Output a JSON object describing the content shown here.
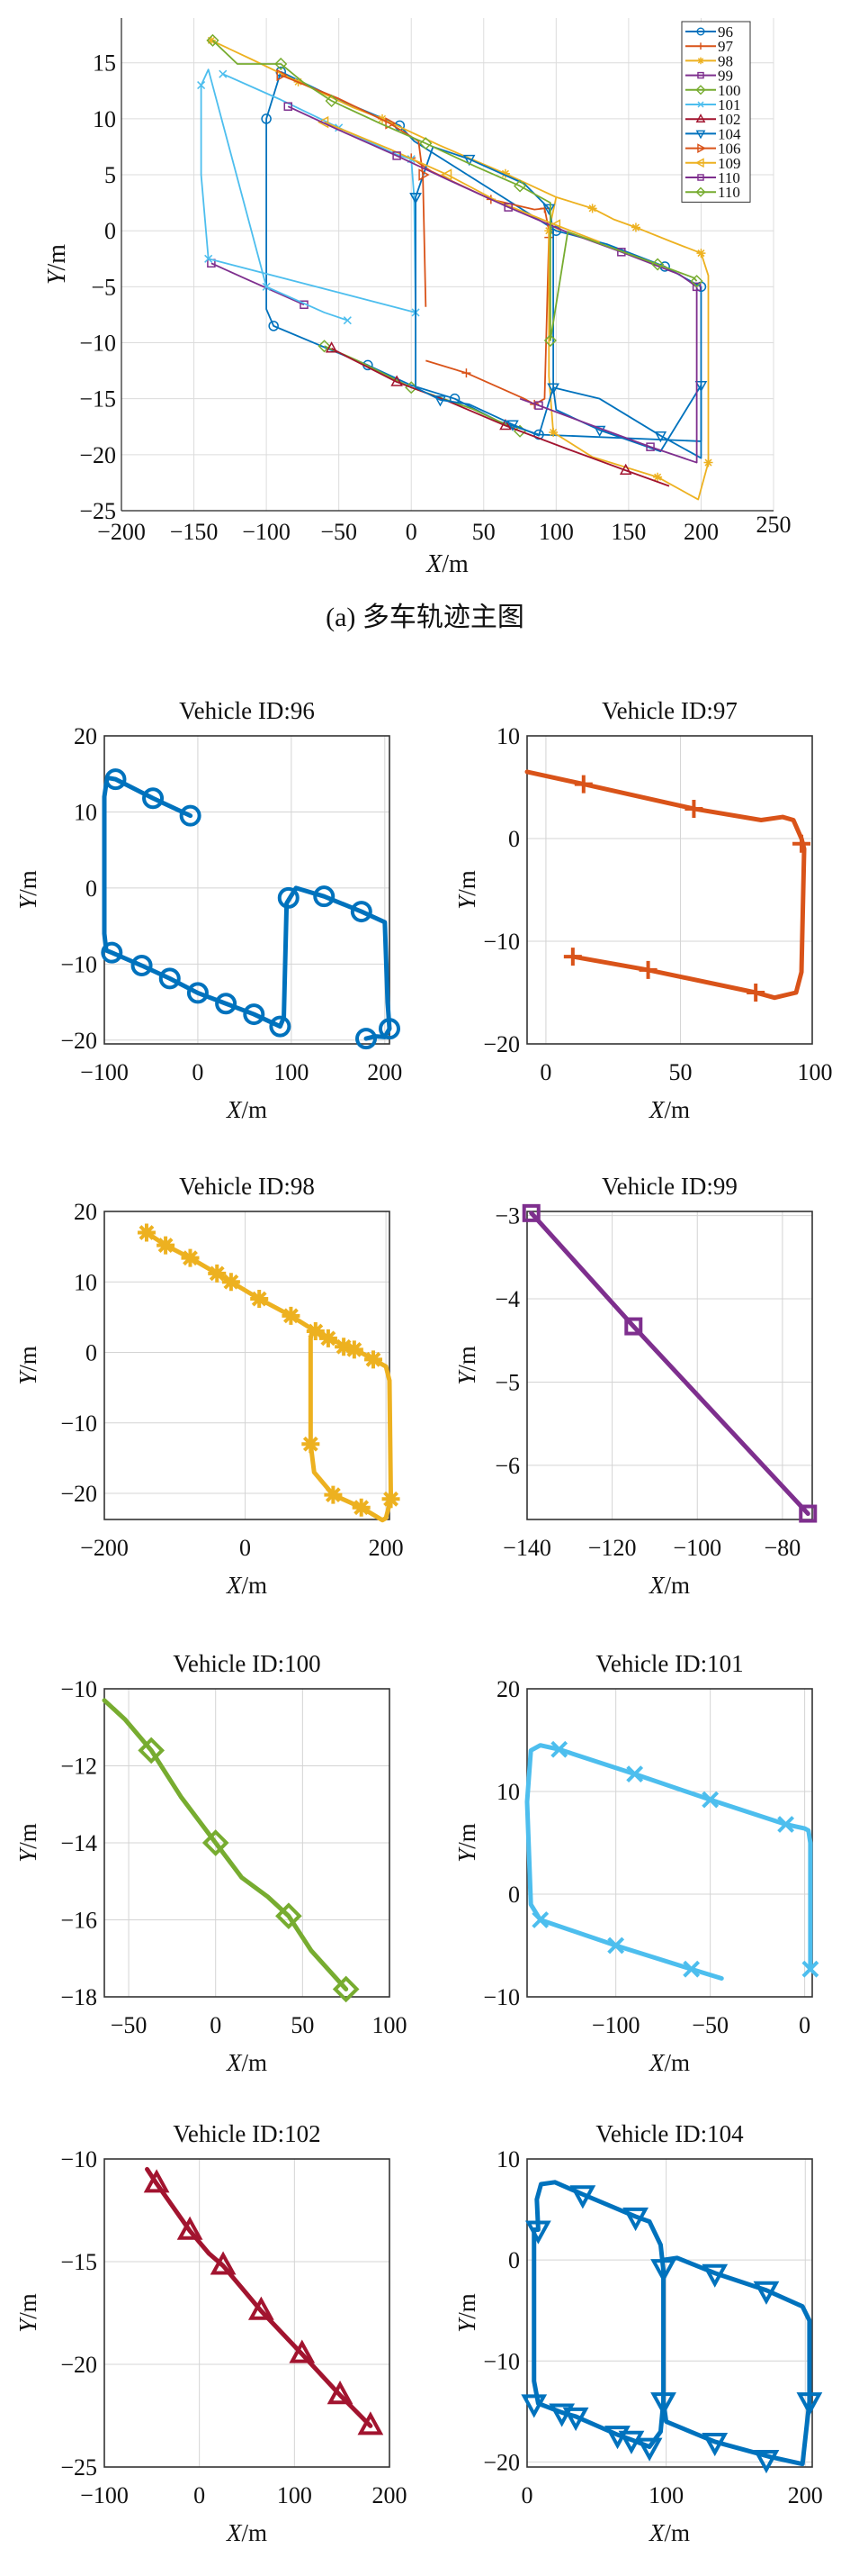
{
  "caption": "(a) 多车轨迹主图",
  "chart_data": [
    {
      "type": "line",
      "title": "",
      "xlabel": "X/m",
      "ylabel": "Y/m",
      "xlim": [
        -200,
        250
      ],
      "ylim": [
        -25,
        19
      ],
      "xticks": [
        -200,
        -150,
        -100,
        -50,
        0,
        50,
        100,
        150,
        200,
        250
      ],
      "yticks": [
        -25,
        -20,
        -15,
        -10,
        -5,
        0,
        5,
        10,
        15
      ],
      "grid": true,
      "legend_position": "top-right",
      "series": [
        {
          "name": "96",
          "color": "#0072BD",
          "marker": "circle",
          "x": [
            -90,
            -50,
            -8,
            2,
            100,
            135,
            175,
            190,
            200,
            200,
            88,
            60,
            30,
            0,
            -30,
            -60,
            -95,
            -100,
            -100,
            -90
          ],
          "y": [
            14.2,
            11.7,
            9.4,
            8,
            0,
            -1.2,
            -3.2,
            -4.3,
            -5,
            -18.8,
            -18.2,
            -17,
            -15,
            -13.8,
            -12,
            -10.4,
            -8.5,
            -7,
            10,
            14.2
          ]
        },
        {
          "name": "97",
          "color": "#D95319",
          "marker": "plus",
          "x": [
            0,
            14,
            55,
            85,
            92,
            95,
            95,
            92,
            85,
            78,
            38,
            10
          ],
          "y": [
            6.5,
            5.3,
            2.8,
            1.9,
            2,
            0,
            -0.6,
            -15,
            -15.5,
            -15,
            -12.7,
            -11.6
          ]
        },
        {
          "name": "98",
          "color": "#EDB120",
          "marker": "star",
          "x": [
            -138,
            -110,
            -78,
            -40,
            -20,
            20,
            65,
            100,
            125,
            140,
            155,
            180,
            200,
            205,
            205,
            198,
            170,
            125,
            98,
            95,
            95,
            100
          ],
          "y": [
            17,
            15.3,
            13.3,
            11,
            10,
            7.6,
            5.1,
            3,
            2,
            1,
            0.3,
            -1,
            -2,
            -4,
            -20.7,
            -24,
            -22,
            -20.2,
            -18,
            -13,
            0,
            3
          ]
        },
        {
          "name": "99",
          "color": "#7E2F8E",
          "marker": "square",
          "x": [
            -138,
            -114,
            -74
          ],
          "y": [
            -2.9,
            -4.3,
            -6.6
          ]
        },
        {
          "name": "100",
          "color": "#77AC30",
          "marker": "diamond",
          "x": [
            -60,
            -37,
            0,
            42,
            75
          ],
          "y": [
            -10.3,
            -11.6,
            -14,
            -15.9,
            -17.9
          ]
        },
        {
          "name": "101",
          "color": "#4DBEEE",
          "marker": "x",
          "x": [
            -130,
            -90,
            -50,
            -10,
            0,
            2,
            3,
            3,
            -140,
            -145,
            -145,
            -140,
            -100,
            -60,
            -44
          ],
          "y": [
            14,
            11.7,
            9.2,
            6.8,
            6.4,
            3,
            -7.3,
            -7.3,
            -2.5,
            5,
            13,
            14.4,
            -5,
            -7.3,
            -8
          ]
        },
        {
          "name": "102",
          "color": "#A2142F",
          "marker": "triangle-up",
          "x": [
            -55,
            -45,
            -10,
            25,
            65,
            108,
            148,
            178
          ],
          "y": [
            -10.5,
            -11.2,
            -13.5,
            -15.2,
            -17.4,
            -19.5,
            -21.4,
            -22.8
          ]
        },
        {
          "name": "104",
          "color": "#0072BD",
          "marker": "triangle-down",
          "x": [
            3,
            15,
            40,
            78,
            95,
            98,
            98,
            130,
            172,
            200,
            200,
            172,
            130,
            100,
            98,
            88,
            70,
            40,
            20,
            3,
            3
          ],
          "y": [
            3,
            7.5,
            6.4,
            4.2,
            2,
            0,
            -14,
            -15,
            -18.3,
            -20.3,
            -13.8,
            -19.7,
            -17.8,
            -16,
            -14,
            -18.3,
            -17.3,
            -15.5,
            -15.1,
            -14,
            3
          ]
        },
        {
          "name": "106",
          "color": "#D95319",
          "marker": "triangle-right",
          "x": [
            -90,
            -50,
            -15,
            5,
            8,
            10
          ],
          "y": [
            13.9,
            11.8,
            9.6,
            8,
            5,
            -6.8
          ]
        },
        {
          "name": "109",
          "color": "#EDB120",
          "marker": "triangle-left",
          "x": [
            -60,
            -15,
            25,
            60,
            100,
            130
          ],
          "y": [
            9.7,
            7.3,
            5,
            2.6,
            0.5,
            -1
          ]
        },
        {
          "name": "110",
          "color": "#7E2F8E",
          "marker": "square",
          "x": [
            -85,
            -50,
            -10,
            28,
            67,
            107,
            145,
            185,
            197,
            197,
            165,
            125,
            88,
            75
          ],
          "y": [
            11.1,
            9,
            6.7,
            4.4,
            2.1,
            -0.1,
            -1.9,
            -3.9,
            -5,
            -20.7,
            -19.3,
            -17.4,
            -15.6,
            -15
          ]
        },
        {
          "name": "110",
          "color": "#77AC30",
          "marker": "diamond",
          "x": [
            -137,
            -120,
            -90,
            -75,
            -55,
            -20,
            10,
            45,
            75,
            96,
            96,
            108,
            170,
            195,
            197
          ],
          "y": [
            17,
            14.9,
            14.9,
            13.3,
            11.6,
            9.5,
            7.8,
            5.7,
            4,
            2.5,
            -9.8,
            -0.1,
            -3,
            -4.2,
            -4.5
          ]
        }
      ]
    },
    {
      "type": "line",
      "title": "Vehicle ID:96",
      "xlabel": "X/m",
      "ylabel": "Y/m",
      "color": "#0072BD",
      "marker": "circle",
      "xlim": [
        -100,
        205
      ],
      "ylim": [
        -20.5,
        20
      ],
      "xticks": [
        -100,
        0,
        100,
        200
      ],
      "yticks": [
        -20,
        -10,
        0,
        10,
        20
      ],
      "x": [
        -8,
        -48,
        -88,
        -97,
        -100,
        -100,
        -98,
        -92,
        -60,
        -30,
        0,
        30,
        60,
        88,
        92,
        95,
        100,
        105,
        135,
        175,
        200,
        203,
        205,
        200,
        190,
        180
      ],
      "y": [
        9.5,
        11.8,
        14.3,
        14.5,
        12,
        -6,
        -8.2,
        -8.5,
        -10.2,
        -11.9,
        -13.8,
        -15.2,
        -16.6,
        -18.2,
        -17,
        -2,
        -1,
        0,
        -1.1,
        -3.1,
        -4.5,
        -15,
        -18.5,
        -19.6,
        -19.5,
        -19.8
      ],
      "markers_x": [
        -88,
        -48,
        -8,
        -92,
        -60,
        -30,
        0,
        30,
        60,
        88,
        97,
        135,
        175,
        180,
        205
      ],
      "markers_y": [
        14.3,
        11.8,
        9.5,
        -8.5,
        -10.2,
        -11.9,
        -13.8,
        -15.2,
        -16.6,
        -18.2,
        -1.3,
        -1.1,
        -3.1,
        -19.8,
        -18.5
      ]
    },
    {
      "type": "line",
      "title": "Vehicle ID:97",
      "xlabel": "X/m",
      "ylabel": "Y/m",
      "color": "#D95319",
      "marker": "plus",
      "xlim": [
        -7,
        99
      ],
      "ylim": [
        -20,
        10
      ],
      "xticks": [
        0,
        50,
        100
      ],
      "yticks": [
        -20,
        -10,
        0,
        10
      ],
      "x": [
        -7,
        14,
        55,
        80,
        88,
        92,
        95,
        96,
        95,
        93,
        85,
        78,
        38,
        10
      ],
      "y": [
        6.5,
        5.3,
        2.9,
        1.8,
        2.1,
        1.8,
        0,
        -1,
        -13,
        -15,
        -15.5,
        -15,
        -12.8,
        -11.5
      ],
      "markers_x": [
        14,
        55,
        95,
        78,
        38,
        10
      ],
      "markers_y": [
        5.3,
        2.9,
        -0.5,
        -15,
        -12.8,
        -11.5
      ]
    },
    {
      "type": "line",
      "title": "Vehicle ID:98",
      "xlabel": "X/m",
      "ylabel": "Y/m",
      "color": "#EDB120",
      "marker": "star",
      "xlim": [
        -200,
        205
      ],
      "ylim": [
        -23.7,
        20
      ],
      "xticks": [
        -200,
        0,
        200
      ],
      "yticks": [
        -20,
        -10,
        0,
        10,
        20
      ],
      "x": [
        -140,
        -113,
        -78,
        -40,
        -20,
        20,
        65,
        100,
        120,
        140,
        155,
        182,
        200,
        205,
        207,
        200,
        195,
        165,
        125,
        98,
        93,
        93,
        95
      ],
      "y": [
        17,
        15.2,
        13.4,
        11.2,
        10,
        7.6,
        5.2,
        3,
        2,
        1,
        0.5,
        -1,
        -2,
        -4,
        -20.8,
        -23.5,
        -23.8,
        -22,
        -20.2,
        -17,
        -13,
        2,
        3
      ],
      "markers_x": [
        -140,
        -113,
        -78,
        -40,
        -20,
        20,
        65,
        100,
        118,
        140,
        155,
        182,
        207,
        165,
        125,
        93
      ],
      "markers_y": [
        17,
        15.2,
        13.4,
        11.2,
        10,
        7.6,
        5.2,
        3,
        2,
        0.8,
        0.4,
        -1,
        -20.8,
        -22,
        -20.2,
        -13
      ]
    },
    {
      "type": "line",
      "title": "Vehicle ID:99",
      "xlabel": "X/m",
      "ylabel": "Y/m",
      "color": "#7E2F8E",
      "marker": "square",
      "xlim": [
        -140,
        -73
      ],
      "ylim": [
        -6.65,
        -2.95
      ],
      "xticks": [
        -140,
        -120,
        -100,
        -80
      ],
      "yticks": [
        -6,
        -5,
        -4,
        -3
      ],
      "x": [
        -139,
        -115,
        -74
      ],
      "y": [
        -2.97,
        -4.33,
        -6.58
      ],
      "markers_x": [
        -139,
        -115,
        -74
      ],
      "markers_y": [
        -2.97,
        -4.33,
        -6.58
      ]
    },
    {
      "type": "line",
      "title": "Vehicle ID:100",
      "xlabel": "X/m",
      "ylabel": "Y/m",
      "color": "#77AC30",
      "marker": "diamond",
      "xlim": [
        -64,
        100
      ],
      "ylim": [
        -18,
        -10
      ],
      "xticks": [
        -50,
        0,
        50,
        100
      ],
      "yticks": [
        -18,
        -16,
        -14,
        -12,
        -10
      ],
      "x": [
        -64,
        -52,
        -37,
        -20,
        0,
        15,
        30,
        42,
        55,
        75
      ],
      "y": [
        -10.3,
        -10.8,
        -11.6,
        -12.8,
        -14,
        -14.9,
        -15.4,
        -15.9,
        -16.8,
        -17.8
      ],
      "markers_x": [
        -37,
        0,
        42,
        75
      ],
      "markers_y": [
        -11.6,
        -14,
        -15.9,
        -17.8
      ]
    },
    {
      "type": "line",
      "title": "Vehicle ID:101",
      "xlabel": "X/m",
      "ylabel": "Y/m",
      "color": "#4DBEEE",
      "marker": "x",
      "xlim": [
        -147,
        4
      ],
      "ylim": [
        -10,
        20
      ],
      "xticks": [
        -100,
        -50,
        0
      ],
      "yticks": [
        -10,
        0,
        10,
        20
      ],
      "x": [
        3,
        3,
        2,
        0,
        -10,
        -50,
        -90,
        -130,
        -140,
        -145,
        -147,
        -145,
        -140,
        -100,
        -60,
        -44
      ],
      "y": [
        -7.3,
        5,
        6.2,
        6.4,
        6.8,
        9.2,
        11.7,
        14.1,
        14.5,
        14,
        9,
        -1,
        -2.5,
        -5,
        -7.3,
        -8.2
      ],
      "markers_x": [
        -130,
        -90,
        -50,
        -10,
        3,
        -140,
        -100,
        -60
      ],
      "markers_y": [
        14.1,
        11.7,
        9.2,
        6.8,
        -7.3,
        -2.5,
        -5,
        -7.3
      ]
    },
    {
      "type": "line",
      "title": "Vehicle ID:102",
      "xlabel": "X/m",
      "ylabel": "Y/m",
      "color": "#A2142F",
      "marker": "triangle-up",
      "xlim": [
        -100,
        200
      ],
      "ylim": [
        -25,
        -10
      ],
      "xticks": [
        -100,
        0,
        100,
        200
      ],
      "yticks": [
        -25,
        -20,
        -15,
        -10
      ],
      "x": [
        -55,
        -45,
        -10,
        10,
        25,
        65,
        108,
        148,
        180
      ],
      "y": [
        -10.5,
        -11.2,
        -13.5,
        -14.6,
        -15.2,
        -17.4,
        -19.5,
        -21.5,
        -23
      ],
      "markers_x": [
        -45,
        -10,
        25,
        65,
        108,
        148,
        180
      ],
      "markers_y": [
        -11.2,
        -13.5,
        -15.2,
        -17.4,
        -19.5,
        -21.5,
        -23
      ]
    },
    {
      "type": "line",
      "title": "Vehicle ID:104",
      "xlabel": "X/m",
      "ylabel": "Y/m",
      "color": "#0072BD",
      "marker": "triangle-down",
      "xlim": [
        0,
        205
      ],
      "ylim": [
        -20.5,
        10
      ],
      "xticks": [
        0,
        100,
        200
      ],
      "yticks": [
        -20,
        -10,
        0,
        10
      ],
      "x": [
        8,
        7,
        10,
        20,
        40,
        78,
        88,
        96,
        98,
        98,
        96,
        88,
        75,
        65,
        35,
        25,
        8,
        5,
        5,
        8
      ],
      "y": [
        3,
        6,
        7.5,
        7.7,
        6.5,
        4.3,
        3.8,
        1.5,
        -1,
        -14,
        -17,
        -18.5,
        -17.8,
        -17.3,
        -15.5,
        -15.1,
        -14.2,
        -12,
        3,
        3
      ],
      "x2": [
        98,
        108,
        135,
        172,
        198,
        203,
        203,
        198,
        175,
        135,
        100,
        98
      ],
      "y2": [
        0,
        0.2,
        -1.3,
        -3,
        -4.6,
        -6,
        -14,
        -20.2,
        -19.5,
        -18,
        -16,
        -14
      ],
      "markers_x": [
        8,
        40,
        78,
        98,
        135,
        172,
        203,
        172,
        135,
        98,
        88,
        75,
        65,
        35,
        25,
        5
      ],
      "markers_y": [
        3,
        6.5,
        4.3,
        -0.8,
        -1.3,
        -3,
        -14,
        -19.7,
        -18,
        -14,
        -18.5,
        -17.8,
        -17.3,
        -15.5,
        -15.1,
        -14.2
      ]
    }
  ]
}
